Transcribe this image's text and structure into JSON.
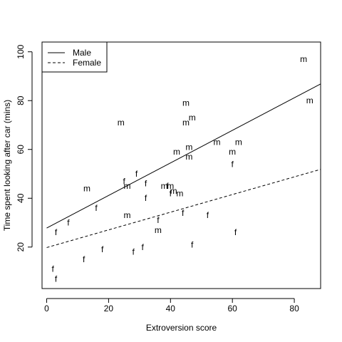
{
  "chart_data": {
    "type": "scatter",
    "xlabel": "Extroversion score",
    "ylabel": "Time spent looking after car (mins)",
    "xlim": [
      -1.5,
      88.5
    ],
    "ylim": [
      3,
      104
    ],
    "x_ticks": [
      0,
      20,
      40,
      60,
      80
    ],
    "y_ticks": [
      20,
      40,
      60,
      80,
      100
    ],
    "grid": false,
    "legend_position": "top-left",
    "legend": [
      {
        "label": "Male",
        "line_style": "solid"
      },
      {
        "label": "Female",
        "line_style": "dashed"
      }
    ],
    "series": [
      {
        "name": "Male",
        "marker": "m",
        "regression_line": {
          "intercept": 27.8,
          "slope": 0.667,
          "line_style": "solid"
        },
        "points": [
          {
            "x": 83,
            "y": 97
          },
          {
            "x": 85,
            "y": 80
          },
          {
            "x": 45,
            "y": 79
          },
          {
            "x": 47,
            "y": 73
          },
          {
            "x": 24,
            "y": 71
          },
          {
            "x": 45,
            "y": 71
          },
          {
            "x": 55,
            "y": 63
          },
          {
            "x": 62,
            "y": 63
          },
          {
            "x": 46,
            "y": 61
          },
          {
            "x": 42,
            "y": 59
          },
          {
            "x": 60,
            "y": 59
          },
          {
            "x": 46,
            "y": 57
          },
          {
            "x": 26,
            "y": 45
          },
          {
            "x": 38,
            "y": 45
          },
          {
            "x": 40,
            "y": 45
          },
          {
            "x": 13,
            "y": 44
          },
          {
            "x": 41,
            "y": 43
          },
          {
            "x": 43,
            "y": 42
          },
          {
            "x": 26,
            "y": 33
          },
          {
            "x": 36,
            "y": 27
          }
        ]
      },
      {
        "name": "Female",
        "marker": "f",
        "regression_line": {
          "intercept": 19.8,
          "slope": 0.362,
          "line_style": "dashed"
        },
        "points": [
          {
            "x": 29,
            "y": 50
          },
          {
            "x": 25,
            "y": 47
          },
          {
            "x": 32,
            "y": 46
          },
          {
            "x": 39,
            "y": 45
          },
          {
            "x": 40,
            "y": 42
          },
          {
            "x": 32,
            "y": 40
          },
          {
            "x": 16,
            "y": 36
          },
          {
            "x": 44,
            "y": 34
          },
          {
            "x": 52,
            "y": 33
          },
          {
            "x": 36,
            "y": 31
          },
          {
            "x": 7,
            "y": 30
          },
          {
            "x": 3,
            "y": 26
          },
          {
            "x": 61,
            "y": 26
          },
          {
            "x": 31,
            "y": 20
          },
          {
            "x": 47,
            "y": 21
          },
          {
            "x": 18,
            "y": 19
          },
          {
            "x": 28,
            "y": 18
          },
          {
            "x": 12,
            "y": 15
          },
          {
            "x": 2,
            "y": 11
          },
          {
            "x": 3,
            "y": 7
          },
          {
            "x": 60,
            "y": 54
          }
        ]
      }
    ]
  }
}
